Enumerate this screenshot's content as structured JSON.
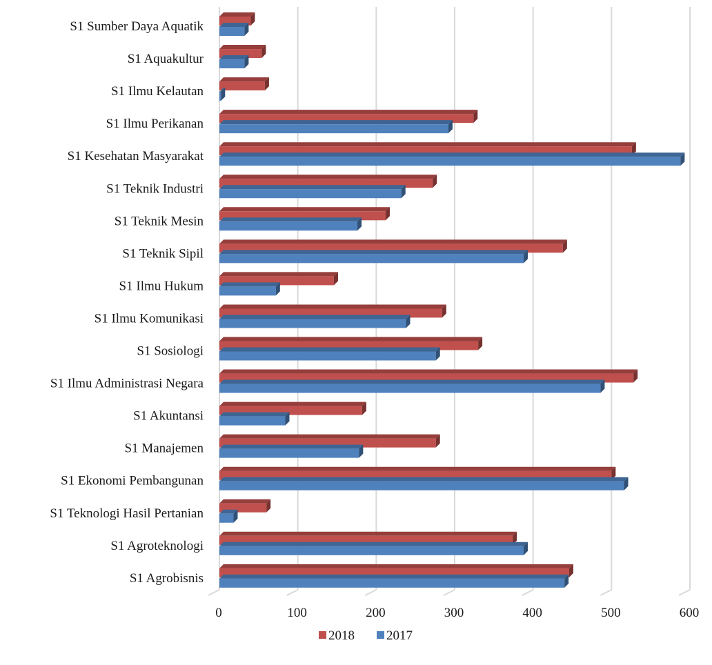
{
  "chart_data": {
    "type": "bar",
    "orientation": "horizontal",
    "style": "3d",
    "categories": [
      "S1 Sumber Daya Aquatik",
      "S1 Aquakultur",
      "S1 Ilmu Kelautan",
      "S1 Ilmu Perikanan",
      "S1 Kesehatan Masyarakat",
      "S1 Teknik Industri",
      "S1 Teknik Mesin",
      "S1 Teknik Sipil",
      "S1 Ilmu Hukum",
      "S1 Ilmu Komunikasi",
      "S1 Sosiologi",
      "S1 Ilmu Administrasi Negara",
      "S1 Akuntansi",
      "S1 Manajemen",
      "S1 Ekonomi Pembangunan",
      "S1 Teknologi Hasil Pertanian",
      "S1 Agroteknologi",
      "S1 Agrobisnis"
    ],
    "series": [
      {
        "name": "2018",
        "color": "#c0504d",
        "values": [
          40,
          54,
          58,
          324,
          526,
          272,
          212,
          438,
          146,
          284,
          330,
          528,
          182,
          276,
          500,
          60,
          374,
          446
        ]
      },
      {
        "name": "2017",
        "color": "#4f81bd",
        "values": [
          32,
          32,
          2,
          292,
          588,
          232,
          176,
          388,
          72,
          238,
          276,
          486,
          84,
          178,
          516,
          18,
          388,
          440
        ]
      }
    ],
    "xlim": [
      0,
      600
    ],
    "xticks": [
      "0",
      "100",
      "200",
      "300",
      "400",
      "500",
      "600"
    ],
    "grid": true,
    "legend": "bottom",
    "title": "",
    "xlabel": "",
    "ylabel": ""
  }
}
